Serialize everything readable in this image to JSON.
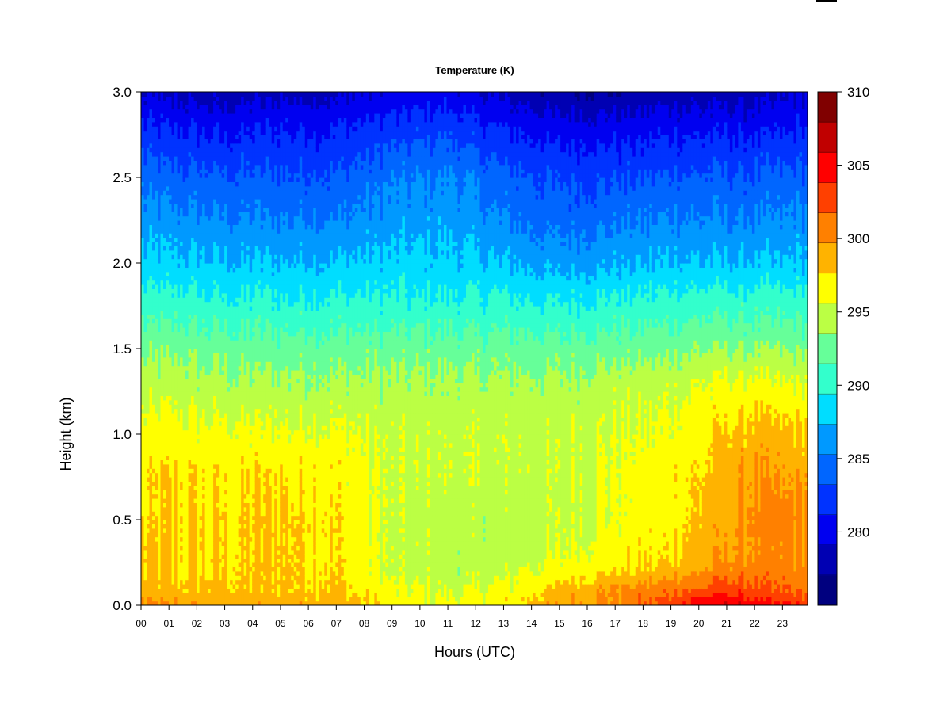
{
  "chart_data": {
    "type": "heatmap",
    "title": "Temperature (K)",
    "xlabel": "Hours (UTC)",
    "ylabel": "Height (km)",
    "x_ticks": [
      "00",
      "01",
      "02",
      "03",
      "04",
      "05",
      "06",
      "07",
      "08",
      "09",
      "10",
      "11",
      "12",
      "13",
      "14",
      "15",
      "16",
      "17",
      "18",
      "19",
      "20",
      "21",
      "22",
      "23"
    ],
    "x_range": [
      0,
      23.9
    ],
    "y_ticks": [
      "0.0",
      "0.5",
      "1.0",
      "1.5",
      "2.0",
      "2.5",
      "3.0"
    ],
    "y_range": [
      0,
      3.0
    ],
    "colorbar": {
      "ticks": [
        "280",
        "285",
        "290",
        "295",
        "300",
        "305",
        "310"
      ],
      "range": [
        275,
        310
      ],
      "levels": [
        275,
        277.5,
        280,
        282.5,
        285,
        287.5,
        290,
        292.5,
        295,
        297.5,
        300,
        302.5,
        305,
        307.5,
        310
      ],
      "colors": [
        "#00007F",
        "#0000B3",
        "#0000F0",
        "#0033FF",
        "#0066FF",
        "#0099FF",
        "#00DDFF",
        "#33FFCC",
        "#66FF99",
        "#BBFF44",
        "#FFFF00",
        "#FFB300",
        "#FF8000",
        "#FF4000",
        "#FF0000",
        "#C00000",
        "#800000"
      ]
    },
    "temperature_profile_K": {
      "heights_km": [
        0,
        0.1,
        0.2,
        0.3,
        0.5,
        0.8,
        1.0,
        1.3,
        1.5,
        1.8,
        2.0,
        2.3,
        2.5,
        2.8,
        3.0
      ],
      "hours": [
        0,
        1,
        3,
        5,
        7,
        9,
        11,
        13,
        15,
        17,
        19,
        20,
        21,
        22,
        23.9
      ],
      "values": [
        [
          300,
          299.5,
          299,
          299,
          299,
          297,
          296,
          297,
          299.5,
          300,
          303,
          305,
          306,
          305,
          303
        ],
        [
          298.5,
          298,
          298,
          298,
          298,
          296,
          295,
          296,
          298,
          300,
          301,
          302,
          303,
          302,
          301
        ],
        [
          298,
          297.5,
          297.5,
          298,
          297.5,
          295,
          294.5,
          295,
          296.5,
          297.5,
          298.5,
          299.5,
          300.5,
          301,
          300.5
        ],
        [
          298,
          297.5,
          297.5,
          298,
          297.5,
          295,
          294.5,
          294.5,
          295.5,
          296.5,
          297.5,
          298.5,
          299.5,
          300,
          300
        ],
        [
          297.5,
          297.5,
          297.5,
          298,
          297.5,
          295,
          294.5,
          294.5,
          295,
          296,
          297,
          298,
          299,
          300.5,
          300
        ],
        [
          297,
          297.5,
          297,
          297.5,
          297,
          295,
          295,
          295,
          295,
          296,
          297,
          297.5,
          298.5,
          299.5,
          299
        ],
        [
          296.5,
          296.5,
          296,
          296,
          296,
          295,
          295,
          295,
          295,
          295.5,
          296,
          297,
          298,
          298.5,
          298
        ],
        [
          294.5,
          294.5,
          294,
          294,
          294,
          294,
          294,
          294,
          294,
          294.5,
          295,
          295.5,
          296,
          296,
          295.5
        ],
        [
          293,
          293,
          292.5,
          292.5,
          292.5,
          292.5,
          292.5,
          292.5,
          292.5,
          292.5,
          293,
          293.5,
          293.5,
          293.5,
          293
        ],
        [
          290,
          290,
          289.5,
          289.5,
          289.5,
          289.5,
          289.5,
          289.5,
          289,
          289.5,
          290,
          290,
          290,
          290,
          290
        ],
        [
          288,
          288,
          287.5,
          287.5,
          287.5,
          288,
          288,
          287.5,
          286.5,
          287,
          287.5,
          287.5,
          287.5,
          287.5,
          287.5
        ],
        [
          286,
          285.5,
          285,
          285,
          285,
          286,
          286.5,
          285,
          284,
          284.5,
          285,
          285,
          285,
          285,
          285.5
        ],
        [
          284.5,
          284,
          283.5,
          283.5,
          283.5,
          285,
          285.5,
          284,
          283,
          283,
          283.5,
          283.5,
          283.5,
          283.5,
          284
        ],
        [
          281.5,
          281,
          280.5,
          281,
          281,
          282,
          282.5,
          281,
          280,
          280,
          280.5,
          280.5,
          280.5,
          280.5,
          281
        ],
        [
          279,
          278.5,
          278,
          278.5,
          278.5,
          279.5,
          280,
          278.5,
          277.5,
          277,
          278,
          278,
          278,
          278,
          279
        ]
      ]
    }
  }
}
